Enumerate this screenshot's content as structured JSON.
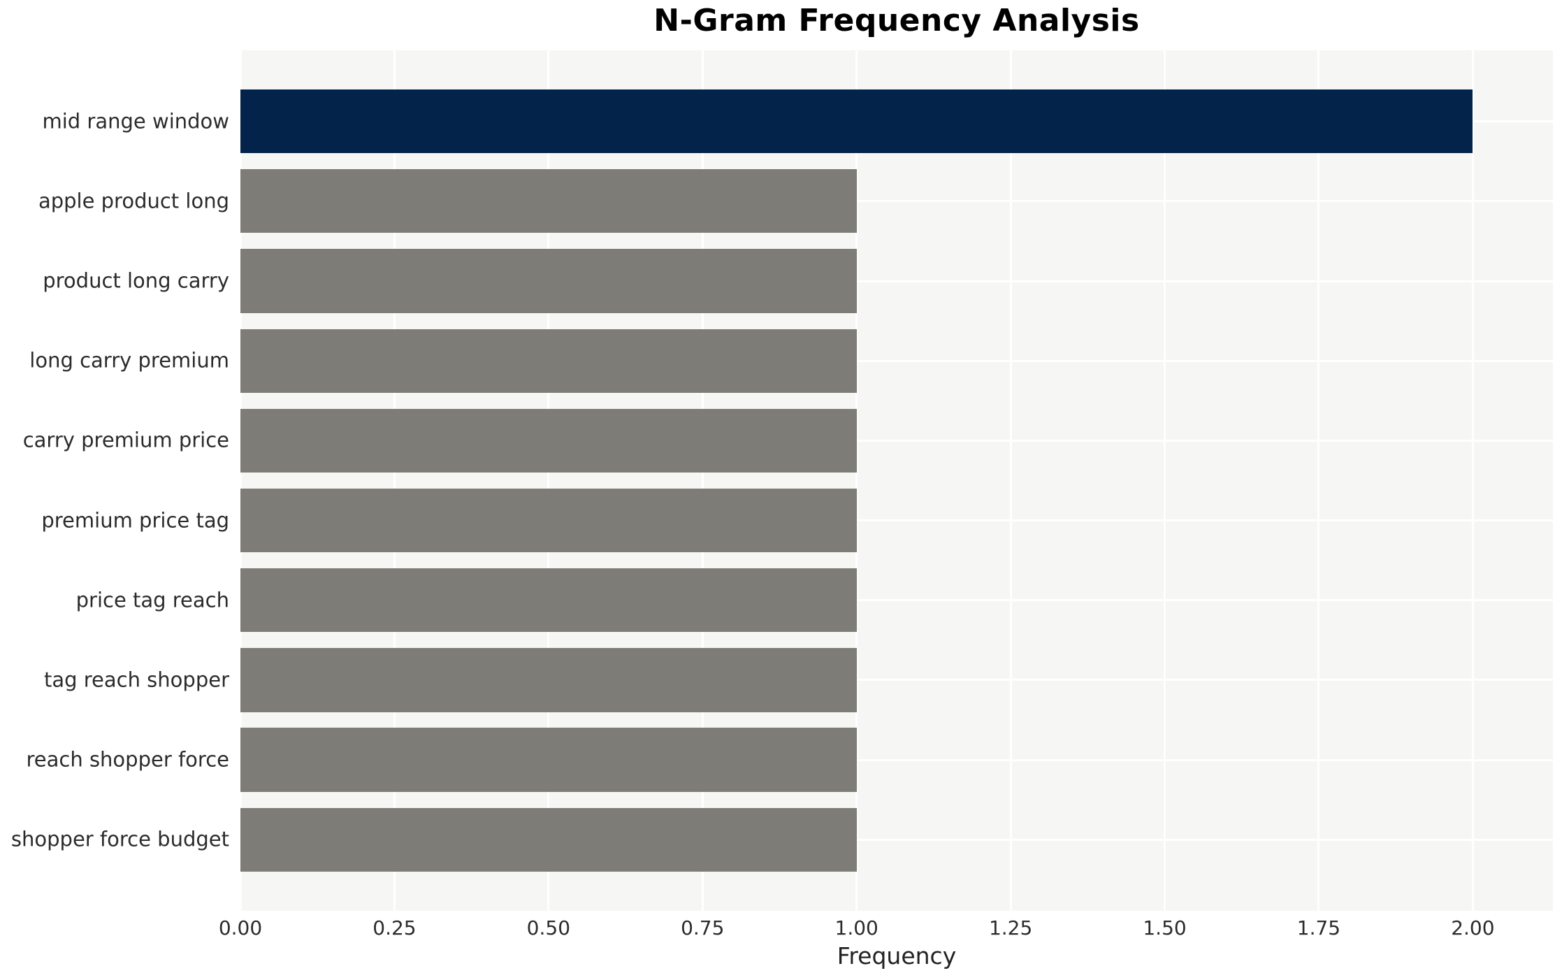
{
  "chart_data": {
    "type": "bar",
    "orientation": "horizontal",
    "title": "N-Gram Frequency Analysis",
    "xlabel": "Frequency",
    "ylabel": "",
    "categories": [
      "mid range window",
      "apple product long",
      "product long carry",
      "long carry premium",
      "carry premium price",
      "premium price tag",
      "price tag reach",
      "tag reach shopper",
      "reach shopper force",
      "shopper force budget"
    ],
    "values": [
      2,
      1,
      1,
      1,
      1,
      1,
      1,
      1,
      1,
      1
    ],
    "bar_colors": [
      "#04234a",
      "#7d7c77",
      "#7d7c77",
      "#7d7c77",
      "#7d7c77",
      "#7d7c77",
      "#7d7c77",
      "#7d7c77",
      "#7d7c77",
      "#7d7c77"
    ],
    "xticks": [
      0,
      0.25,
      0.5,
      0.75,
      1.0,
      1.25,
      1.5,
      1.75,
      2.0
    ],
    "xtick_labels": [
      "0.00",
      "0.25",
      "0.50",
      "0.75",
      "1.00",
      "1.25",
      "1.50",
      "1.75",
      "2.00"
    ],
    "xlim": [
      0,
      2.13
    ],
    "grid": "on",
    "legend_position": "none",
    "colors": {
      "plot_background": "#f6f6f5",
      "gridline": "#ffffff",
      "title_text": "#000000",
      "tick_text": "#2b2b2b",
      "highlight_bar": "#04234a",
      "default_bar": "#7d7c77"
    }
  }
}
